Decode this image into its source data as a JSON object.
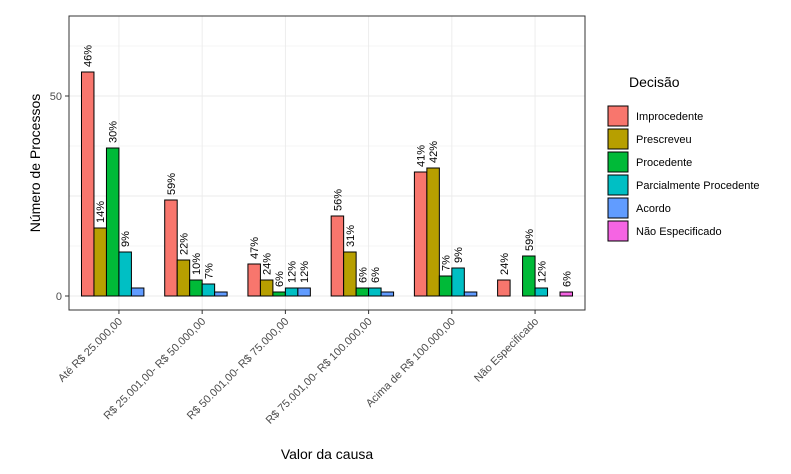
{
  "chart_data": {
    "type": "bar",
    "xlabel": "Valor da causa",
    "ylabel": "Número de Processos",
    "ylim": [
      -3.5,
      70
    ],
    "yticks": [
      0,
      50
    ],
    "grid": true,
    "legend": {
      "title": "Decisão",
      "position": "right"
    },
    "categories": [
      "Até R$ 25.000,00",
      "R$ 25.001,00- R$ 50.000,00",
      "R$ 50.001,00- R$ 75.000,00",
      "R$ 75.001,00- R$ 100.000,00",
      "Acima de R$ 100.000,00",
      "Não Especificado"
    ],
    "series": [
      {
        "name": "Improcedente",
        "color": "#F8766D",
        "values": [
          56,
          24,
          8,
          20,
          31,
          4
        ],
        "labels": [
          "46%",
          "59%",
          "47%",
          "56%",
          "41%",
          "24%"
        ]
      },
      {
        "name": "Prescreveu",
        "color": "#B79F00",
        "values": [
          17,
          9,
          4,
          11,
          32,
          null
        ],
        "labels": [
          "14%",
          "22%",
          "24%",
          "31%",
          "42%",
          ""
        ]
      },
      {
        "name": "Procedente",
        "color": "#00BA38",
        "values": [
          37,
          4,
          1,
          2,
          5,
          10
        ],
        "labels": [
          "30%",
          "10%",
          "6%",
          "6%",
          "7%",
          "59%"
        ]
      },
      {
        "name": "Parcialmente Procedente",
        "color": "#00BFC4",
        "values": [
          11,
          3,
          2,
          2,
          7,
          2
        ],
        "labels": [
          "9%",
          "7%",
          "12%",
          "6%",
          "9%",
          "12%"
        ]
      },
      {
        "name": "Acordo",
        "color": "#619CFF",
        "values": [
          2,
          1,
          2,
          1,
          1,
          null
        ],
        "labels": [
          "",
          "",
          "12%",
          "",
          "",
          ""
        ]
      },
      {
        "name": "Não Especificado",
        "color": "#F564E3",
        "values": [
          null,
          null,
          null,
          null,
          null,
          1
        ],
        "labels": [
          "",
          "",
          "",
          "",
          "",
          "6%"
        ]
      }
    ]
  }
}
